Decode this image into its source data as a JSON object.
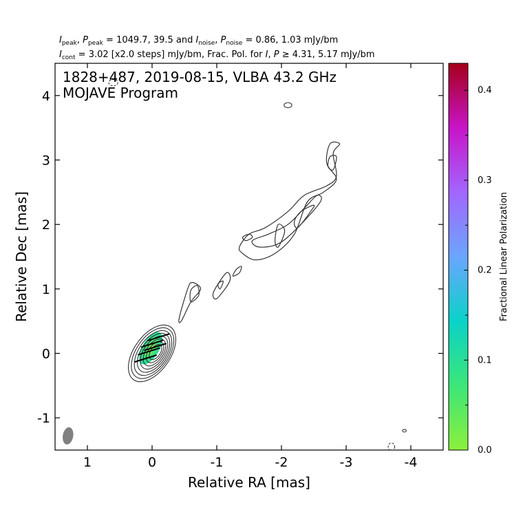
{
  "chart_data": {
    "type": "contour",
    "header": {
      "line1": {
        "i_peak": "I",
        "i_peak_sub": "peak",
        "sep1": ", ",
        "p_peak": "P",
        "p_peak_sub": "peak",
        "mid1": " = 1049.7, 39.5 and ",
        "i_noise": "I",
        "i_noise_sub": "noise",
        "sep2": ", ",
        "p_noise": "P",
        "p_noise_sub": "noise",
        "tail1": " = 0.86, 1.03 mJy/bm"
      },
      "line2": {
        "i_cont": "I",
        "i_cont_sub": "cont",
        "tail2a": " = 3.02 [x2.0 steps] mJy/bm, Frac. Pol. for ",
        "iv": "I",
        "sep3": ", ",
        "pv": "P",
        "tail2b": " ≥  4.31, 5.17 mJy/bm"
      }
    },
    "annotation": {
      "line1": "1828+487, 2019-08-15, VLBA 43.2 GHz",
      "line2": "MOJAVE Program"
    },
    "xlabel": "Relative RA [mas]",
    "ylabel": "Relative Dec [mas]",
    "xlim": [
      1.5,
      -4.5
    ],
    "ylim": [
      -1.5,
      4.5
    ],
    "x_ticks": [
      {
        "value": 1,
        "label": "1"
      },
      {
        "value": 0,
        "label": "0"
      },
      {
        "value": -1,
        "label": "-1"
      },
      {
        "value": -2,
        "label": "-2"
      },
      {
        "value": -3,
        "label": "-3"
      },
      {
        "value": -4,
        "label": "-4"
      }
    ],
    "y_ticks": [
      {
        "value": -1,
        "label": "-1"
      },
      {
        "value": 0,
        "label": "0"
      },
      {
        "value": 1,
        "label": "1"
      },
      {
        "value": 2,
        "label": "2"
      },
      {
        "value": 3,
        "label": "3"
      },
      {
        "value": 4,
        "label": "4"
      }
    ],
    "core": {
      "ra": 0.0,
      "dec": 0.0,
      "contours": 8,
      "base_a": 0.5,
      "base_b": 0.28,
      "pa_deg": 35
    },
    "jet_contours": [
      {
        "name": "jet-outer-envelope-1",
        "points": [
          [
            0.45,
            0.5
          ],
          [
            0.6,
            0.8
          ],
          [
            0.75,
            1.0
          ],
          [
            0.62,
            1.1
          ],
          [
            0.55,
            1.0
          ],
          [
            0.42,
            0.55
          ]
        ]
      },
      {
        "name": "jet-knot-0p65",
        "points": [
          [
            0.6,
            0.8
          ],
          [
            0.72,
            0.9
          ],
          [
            0.7,
            1.05
          ],
          [
            0.6,
            0.98
          ]
        ]
      },
      {
        "name": "jet-knot-1p0",
        "points": [
          [
            0.95,
            0.95
          ],
          [
            1.15,
            1.25
          ],
          [
            1.2,
            1.12
          ],
          [
            1.0,
            0.85
          ]
        ]
      },
      {
        "name": "jet-knot-1p0-inner",
        "points": [
          [
            1.05,
            1.0
          ],
          [
            1.1,
            1.12
          ],
          [
            1.02,
            1.08
          ]
        ]
      },
      {
        "name": "jet-knot-1p3",
        "points": [
          [
            1.35,
            1.25
          ],
          [
            1.38,
            1.35
          ],
          [
            1.3,
            1.3
          ],
          [
            1.25,
            1.2
          ]
        ]
      },
      {
        "name": "jet-ridge-outer",
        "points": [
          [
            1.35,
            1.65
          ],
          [
            1.5,
            1.85
          ],
          [
            1.75,
            1.95
          ],
          [
            2.1,
            2.2
          ],
          [
            2.35,
            2.45
          ],
          [
            2.7,
            2.6
          ],
          [
            2.85,
            2.75
          ],
          [
            2.8,
            3.1
          ],
          [
            2.9,
            3.25
          ],
          [
            2.75,
            3.25
          ],
          [
            2.7,
            2.95
          ],
          [
            2.85,
            2.7
          ],
          [
            2.65,
            2.5
          ],
          [
            2.4,
            2.35
          ],
          [
            2.2,
            1.85
          ],
          [
            1.9,
            1.55
          ],
          [
            1.6,
            1.45
          ],
          [
            1.4,
            1.55
          ]
        ]
      },
      {
        "name": "jet-ridge-inner",
        "points": [
          [
            1.55,
            1.75
          ],
          [
            1.8,
            1.85
          ],
          [
            2.1,
            2.0
          ],
          [
            2.35,
            2.25
          ],
          [
            2.55,
            2.45
          ],
          [
            2.6,
            2.35
          ],
          [
            2.25,
            1.95
          ],
          [
            1.95,
            1.7
          ],
          [
            1.65,
            1.65
          ]
        ]
      },
      {
        "name": "jet-knot-1p5",
        "points": [
          [
            1.45,
            1.75
          ],
          [
            1.55,
            1.8
          ],
          [
            1.5,
            1.85
          ],
          [
            1.4,
            1.8
          ]
        ]
      },
      {
        "name": "jet-knot-2p0",
        "points": [
          [
            1.95,
            1.65
          ],
          [
            2.05,
            1.9
          ],
          [
            1.95,
            2.0
          ],
          [
            1.9,
            1.75
          ]
        ]
      },
      {
        "name": "jet-knot-2p3",
        "points": [
          [
            2.25,
            1.95
          ],
          [
            2.45,
            2.2
          ],
          [
            2.5,
            2.3
          ],
          [
            2.3,
            2.2
          ],
          [
            2.2,
            2.05
          ]
        ]
      },
      {
        "name": "jet-knot-2p8",
        "points": [
          [
            2.8,
            2.85
          ],
          [
            2.85,
            3.05
          ],
          [
            2.75,
            3.05
          ],
          [
            2.72,
            2.9
          ]
        ]
      }
    ],
    "isolated_components": [
      {
        "name": "component-upper-2p1",
        "ra": -2.1,
        "dec": 3.85,
        "rx": 0.06,
        "ry": 0.04,
        "style": "solid"
      },
      {
        "name": "component-lower-right",
        "ra": -3.9,
        "dec": -1.2,
        "rx": 0.03,
        "ry": 0.02,
        "style": "solid"
      },
      {
        "name": "negative-contour-top-left",
        "ra": 0.6,
        "dec": 4.2,
        "rx": 0.07,
        "ry": 0.05,
        "style": "dashed"
      },
      {
        "name": "negative-contour-bottom-right",
        "ra": -3.7,
        "dec": -1.45,
        "rx": 0.05,
        "ry": 0.06,
        "style": "dashed"
      }
    ],
    "beam": {
      "ra": 1.3,
      "dec": -1.28,
      "major_mas": 0.27,
      "minor_mas": 0.16,
      "pa_deg": 10,
      "color": "#808080"
    },
    "polarization": {
      "region_center": [
        0.02,
        0.08
      ],
      "vectors": [
        {
          "ra": -0.1,
          "dec": 0.25
        },
        {
          "ra": 0.0,
          "dec": 0.15
        },
        {
          "ra": 0.05,
          "dec": 0.03
        },
        {
          "ra": 0.1,
          "dec": -0.08
        },
        {
          "ra": -0.05,
          "dec": 0.1
        }
      ],
      "fractional_values": [
        0.07,
        0.08,
        0.06,
        0.09
      ]
    },
    "colorbar": {
      "label": "Fractional Linear Polarization",
      "min": 0.0,
      "max": 0.43,
      "ticks": [
        {
          "value": 0.0,
          "label": "0.0"
        },
        {
          "value": 0.1,
          "label": "0.1"
        },
        {
          "value": 0.2,
          "label": "0.2"
        },
        {
          "value": 0.3,
          "label": "0.3"
        },
        {
          "value": 0.4,
          "label": "0.4"
        }
      ],
      "minor_ticks": [
        0.05,
        0.15,
        0.25,
        0.35
      ],
      "colors": [
        "#8cf03c",
        "#3ce678",
        "#0ad2c8",
        "#6aa6ff",
        "#a266ff",
        "#c814c8",
        "#a5001a"
      ]
    },
    "contour_color": "#333333"
  }
}
